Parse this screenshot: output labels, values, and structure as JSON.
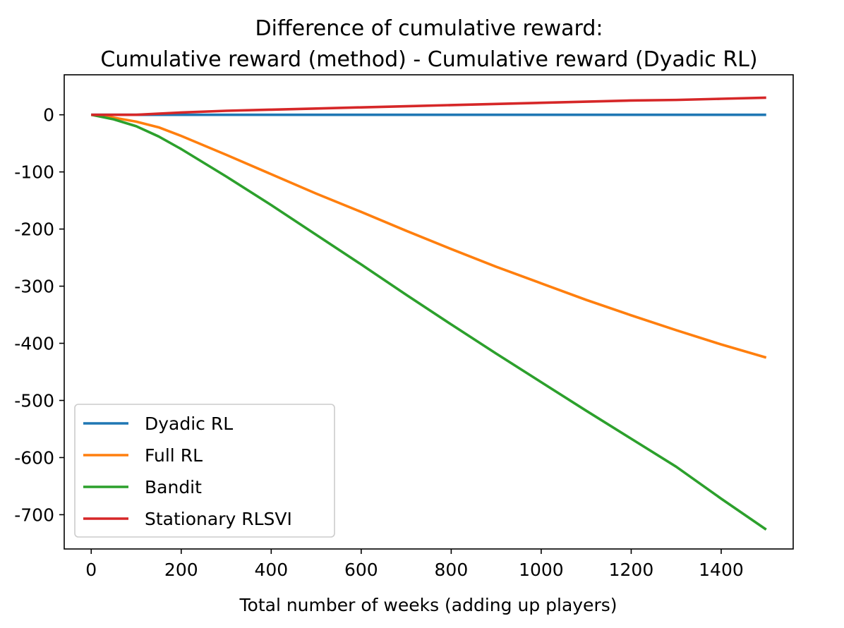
{
  "chart_data": {
    "type": "line",
    "title": "Difference of cumulative reward:",
    "subtitle": "Cumulative reward (method) - Cumulative reward (Dyadic RL)",
    "xlabel": "Total number of weeks (adding up players)",
    "ylabel": "",
    "xlim": [
      -60,
      1560
    ],
    "ylim": [
      -760,
      70
    ],
    "x_ticks": [
      0,
      200,
      400,
      600,
      800,
      1000,
      1200,
      1400
    ],
    "y_ticks": [
      0,
      -100,
      -200,
      -300,
      -400,
      -500,
      -600,
      -700
    ],
    "x_tick_labels": [
      "0",
      "200",
      "400",
      "600",
      "800",
      "1000",
      "1200",
      "1400"
    ],
    "y_tick_labels": [
      "0",
      "-100",
      "-200",
      "-300",
      "-400",
      "-500",
      "-600",
      "-700"
    ],
    "grid": false,
    "legend_position": "lower-left",
    "x": [
      0,
      50,
      100,
      150,
      200,
      300,
      400,
      500,
      600,
      700,
      800,
      900,
      1000,
      1100,
      1200,
      1300,
      1400,
      1500
    ],
    "series": [
      {
        "name": "Dyadic RL",
        "color": "#1f77b4",
        "values": [
          0,
          0,
          0,
          0,
          0,
          0,
          0,
          0,
          0,
          0,
          0,
          0,
          0,
          0,
          0,
          0,
          0,
          0
        ]
      },
      {
        "name": "Full RL",
        "color": "#ff7f0e",
        "values": [
          0,
          -5,
          -12,
          -22,
          -37,
          -70,
          -104,
          -138,
          -170,
          -203,
          -235,
          -266,
          -295,
          -324,
          -351,
          -377,
          -402,
          -425
        ]
      },
      {
        "name": "Bandit",
        "color": "#2ca02c",
        "values": [
          0,
          -8,
          -20,
          -38,
          -60,
          -108,
          -158,
          -210,
          -262,
          -315,
          -367,
          -418,
          -468,
          -518,
          -567,
          -616,
          -672,
          -726
        ]
      },
      {
        "name": "Stationary RLSVI",
        "color": "#d62728",
        "values": [
          0,
          0,
          0,
          2,
          4,
          7,
          9,
          11,
          13,
          15,
          17,
          19,
          21,
          23,
          25,
          26,
          28,
          30
        ]
      }
    ]
  }
}
